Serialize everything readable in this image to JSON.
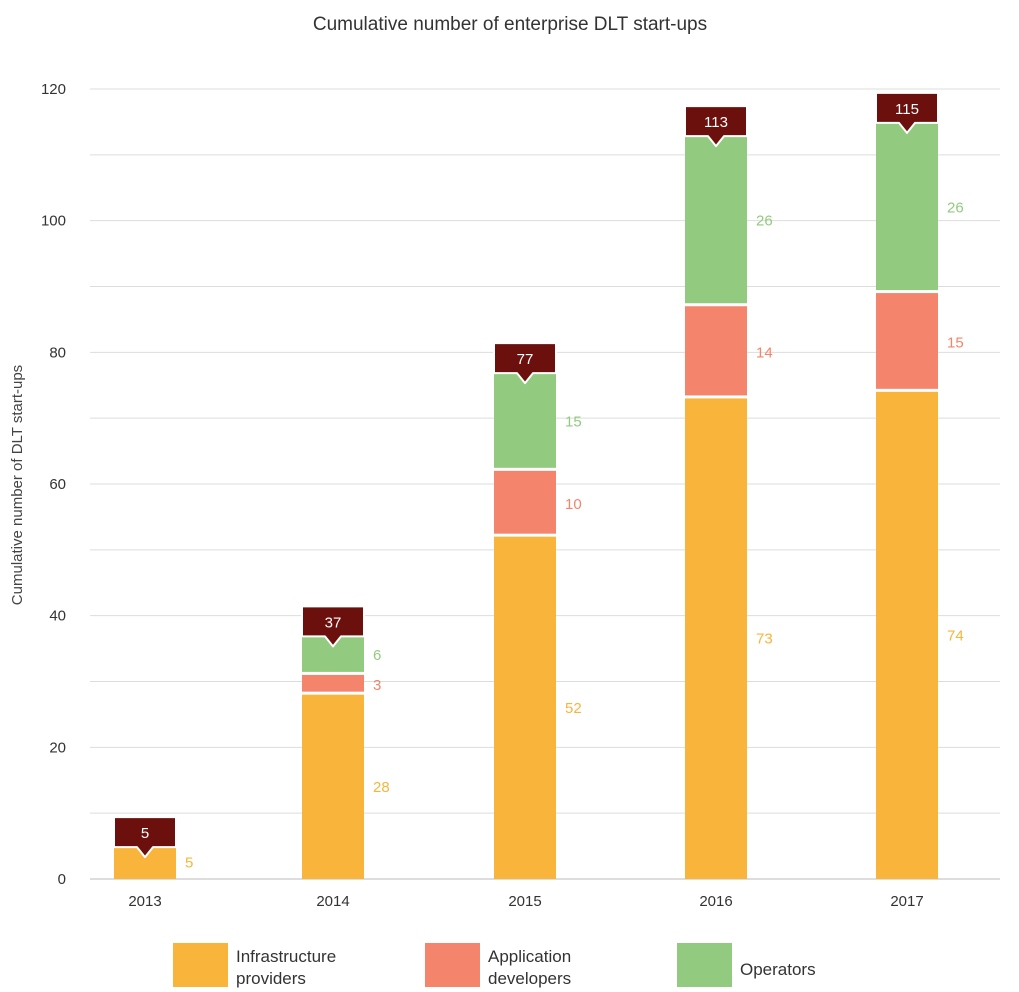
{
  "chart_data": {
    "type": "bar",
    "stacked": true,
    "title": "Cumulative number of enterprise DLT start-ups",
    "xlabel": "",
    "ylabel": "Cumulative number of DLT start-ups",
    "ylim": [
      0,
      120
    ],
    "yticks": [
      0,
      20,
      40,
      60,
      80,
      100,
      120
    ],
    "grid": true,
    "legend_position": "bottom",
    "categories": [
      "2013",
      "2014",
      "2015",
      "2016",
      "2017"
    ],
    "series": [
      {
        "name": "Infrastructure providers",
        "legend_lines": [
          "Infrastructure",
          "providers"
        ],
        "color": "#F9B43C",
        "values": [
          5,
          28,
          52,
          73,
          74
        ]
      },
      {
        "name": "Application developers",
        "legend_lines": [
          "Application",
          "developers"
        ],
        "color": "#F4846B",
        "values": [
          0,
          3,
          10,
          14,
          15
        ]
      },
      {
        "name": "Operators",
        "legend_lines": [
          "Operators"
        ],
        "color": "#92CB7F",
        "values": [
          0,
          6,
          15,
          26,
          26
        ]
      }
    ],
    "totals": [
      5,
      37,
      77,
      113,
      115
    ],
    "total_label_color": "#6B100C"
  }
}
